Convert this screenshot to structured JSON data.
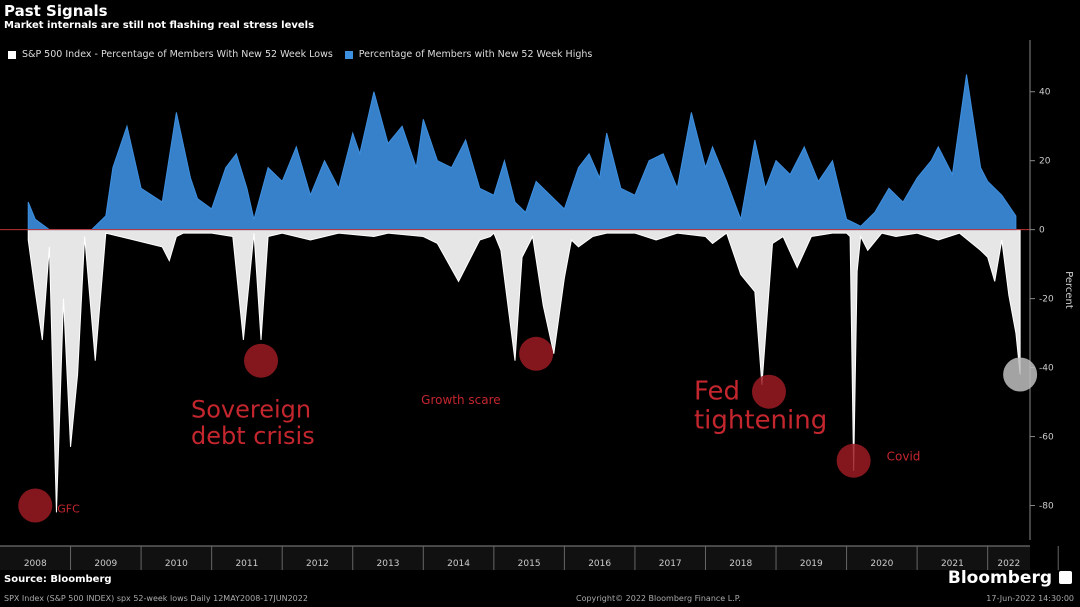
{
  "title": "Past Signals",
  "subtitle": "Market internals are still not flashing real stress levels",
  "source": "Source: Bloomberg",
  "footer_meta": "SPX Index (S&P 500 INDEX) spx 52-week lows  Daily 12MAY2008-17JUN2022",
  "copyright": "Copyright© 2022 Bloomberg Finance L.P.",
  "date_stamp": "17-Jun-2022 14:30:00",
  "brand": "Bloomberg",
  "colors": {
    "lows": "#ffffff",
    "highs": "#3d8fe0",
    "marker": "#9b1b22",
    "annotation": "#c4262e"
  },
  "chart_data": {
    "type": "area",
    "title": "Past Signals",
    "ylabel": "Percent",
    "ylim": [
      -90,
      55
    ],
    "yticks": [
      40,
      20,
      0,
      -20,
      -40,
      -60,
      -80
    ],
    "grid": false,
    "legend_position": "top-left",
    "x_labels": [
      "2008",
      "2009",
      "2010",
      "2011",
      "2012",
      "2013",
      "2014",
      "2015",
      "2016",
      "2017",
      "2018",
      "2019",
      "2020",
      "2021",
      "2022"
    ],
    "series": [
      {
        "name": "S&P 500 Index - Percentage of Members With New 52 Week Lows",
        "x": [
          2008.4,
          2008.5,
          2008.6,
          2008.7,
          2008.8,
          2008.9,
          2009.0,
          2009.1,
          2009.2,
          2009.35,
          2009.5,
          2010.3,
          2010.4,
          2010.5,
          2010.6,
          2011.0,
          2011.3,
          2011.45,
          2011.6,
          2011.7,
          2011.8,
          2012.0,
          2012.4,
          2012.8,
          2013.3,
          2013.5,
          2014.0,
          2014.2,
          2014.5,
          2014.8,
          2014.95,
          2015.0,
          2015.1,
          2015.3,
          2015.4,
          2015.55,
          2015.7,
          2015.85,
          2016.0,
          2016.1,
          2016.2,
          2016.4,
          2016.6,
          2017.0,
          2017.3,
          2017.6,
          2018.0,
          2018.1,
          2018.3,
          2018.5,
          2018.7,
          2018.8,
          2018.95,
          2019.1,
          2019.3,
          2019.5,
          2019.8,
          2020.0,
          2020.05,
          2020.1,
          2020.15,
          2020.2,
          2020.3,
          2020.5,
          2020.7,
          2021.0,
          2021.3,
          2021.6,
          2021.9,
          2022.0,
          2022.1,
          2022.2,
          2022.3,
          2022.4,
          2022.46
        ],
        "y": [
          -3,
          -18,
          -32,
          -5,
          -82,
          -20,
          -63,
          -42,
          -2,
          -38,
          -1,
          -5,
          -9,
          -2,
          -1,
          -1,
          -2,
          -32,
          -1,
          -32,
          -2,
          -1,
          -3,
          -1,
          -2,
          -1,
          -2,
          -4,
          -15,
          -3,
          -2,
          -1,
          -6,
          -38,
          -8,
          -2,
          -22,
          -36,
          -14,
          -3,
          -5,
          -2,
          -1,
          -1,
          -3,
          -1,
          -2,
          -4,
          -1,
          -13,
          -18,
          -45,
          -4,
          -2,
          -11,
          -2,
          -1,
          -1,
          -2,
          -70,
          -12,
          -2,
          -6,
          -1,
          -2,
          -1,
          -3,
          -1,
          -6,
          -8,
          -15,
          -3,
          -19,
          -30,
          -42
        ]
      },
      {
        "name": "Percentage of Members with New 52 Week Highs",
        "x": [
          2008.4,
          2008.5,
          2008.7,
          2008.9,
          2009.1,
          2009.3,
          2009.5,
          2009.6,
          2009.8,
          2010.0,
          2010.3,
          2010.5,
          2010.7,
          2010.8,
          2011.0,
          2011.2,
          2011.35,
          2011.5,
          2011.6,
          2011.8,
          2012.0,
          2012.2,
          2012.4,
          2012.6,
          2012.8,
          2013.0,
          2013.1,
          2013.3,
          2013.5,
          2013.7,
          2013.9,
          2014.0,
          2014.2,
          2014.4,
          2014.6,
          2014.8,
          2015.0,
          2015.15,
          2015.3,
          2015.45,
          2015.6,
          2015.8,
          2016.0,
          2016.2,
          2016.35,
          2016.5,
          2016.6,
          2016.8,
          2017.0,
          2017.2,
          2017.4,
          2017.6,
          2017.8,
          2018.0,
          2018.1,
          2018.3,
          2018.5,
          2018.7,
          2018.85,
          2019.0,
          2019.2,
          2019.4,
          2019.6,
          2019.8,
          2020.0,
          2020.1,
          2020.2,
          2020.4,
          2020.6,
          2020.8,
          2021.0,
          2021.2,
          2021.3,
          2021.5,
          2021.7,
          2021.9,
          2022.0,
          2022.2,
          2022.4
        ],
        "y": [
          8,
          3,
          0,
          0,
          0,
          0,
          4,
          18,
          30,
          12,
          8,
          34,
          15,
          9,
          6,
          18,
          22,
          12,
          3,
          18,
          14,
          24,
          10,
          20,
          12,
          28,
          22,
          40,
          25,
          30,
          18,
          32,
          20,
          18,
          26,
          12,
          10,
          20,
          8,
          5,
          14,
          10,
          6,
          18,
          22,
          15,
          28,
          12,
          10,
          20,
          22,
          12,
          34,
          18,
          24,
          14,
          3,
          26,
          12,
          20,
          16,
          24,
          14,
          20,
          3,
          2,
          1,
          5,
          12,
          8,
          15,
          20,
          24,
          16,
          45,
          18,
          14,
          10,
          4
        ]
      }
    ],
    "annotations": [
      {
        "text": "GFC",
        "x": 2008.5,
        "y": -80
      },
      {
        "text": "Sovereign\ndebt crisis",
        "x": 2011.7,
        "y": -38
      },
      {
        "text": "Growth scare",
        "x": 2015.6,
        "y": -36
      },
      {
        "text": "Fed\ntightening",
        "x": 2018.9,
        "y": -47
      },
      {
        "text": "Covid",
        "x": 2020.1,
        "y": -67
      },
      {
        "text": "",
        "x": 2022.46,
        "y": -42
      }
    ]
  }
}
